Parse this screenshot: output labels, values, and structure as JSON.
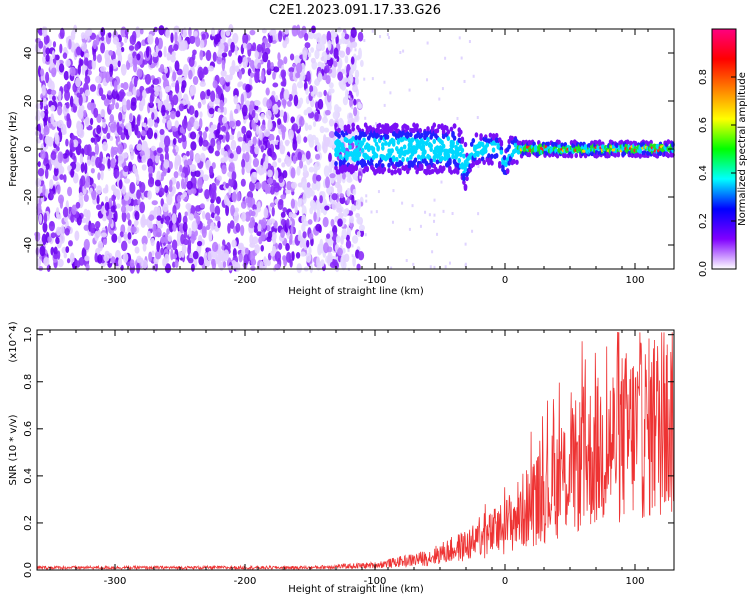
{
  "title": "C2E1.2023.091.17.33.G26",
  "chart_data": [
    {
      "type": "heatmap",
      "xlabel": "Height of straight line (km)",
      "ylabel": "Frequency (Hz)",
      "xlim": [
        -360,
        130
      ],
      "ylim": [
        -50,
        50
      ],
      "xticks": [
        -300,
        -200,
        -100,
        0,
        100
      ],
      "yticks": [
        -40,
        -20,
        0,
        20,
        40
      ],
      "colorbar": {
        "label": "Normalized spectral amplitude",
        "range": [
          0,
          1
        ],
        "ticks": [
          "0.0",
          "0.2",
          "0.4",
          "0.6",
          "0.8"
        ],
        "colors": [
          "#ffffff",
          "#8000ff",
          "#0000ff",
          "#00ffff",
          "#00ff00",
          "#ffff00",
          "#ff8000",
          "#ff0000",
          "#ff0080"
        ]
      },
      "features": {
        "noise_region_x": [
          -360,
          -130
        ],
        "signal_band_start_x": -130,
        "signal_center_freq": 0,
        "dip_points": [
          [
            -30,
            -12
          ],
          [
            0,
            -10
          ]
        ]
      }
    },
    {
      "type": "line",
      "xlabel": "Height of straight line (km)",
      "ylabel": "SNR (10 * v/v)",
      "y_scale_label": "(x10^4)",
      "xlim": [
        -360,
        130
      ],
      "ylim": [
        0,
        1.02
      ],
      "xticks": [
        -300,
        -200,
        -100,
        0,
        100
      ],
      "yticks": [
        "0.0",
        "0.2",
        "0.4",
        "0.6",
        "0.8",
        "1.0"
      ],
      "color": "#ee3333",
      "trend": {
        "x": [
          -360,
          -150,
          -100,
          -60,
          -20,
          0,
          30,
          60,
          90,
          130
        ],
        "y": [
          0.01,
          0.01,
          0.02,
          0.05,
          0.12,
          0.18,
          0.32,
          0.45,
          0.55,
          0.62
        ]
      }
    }
  ]
}
